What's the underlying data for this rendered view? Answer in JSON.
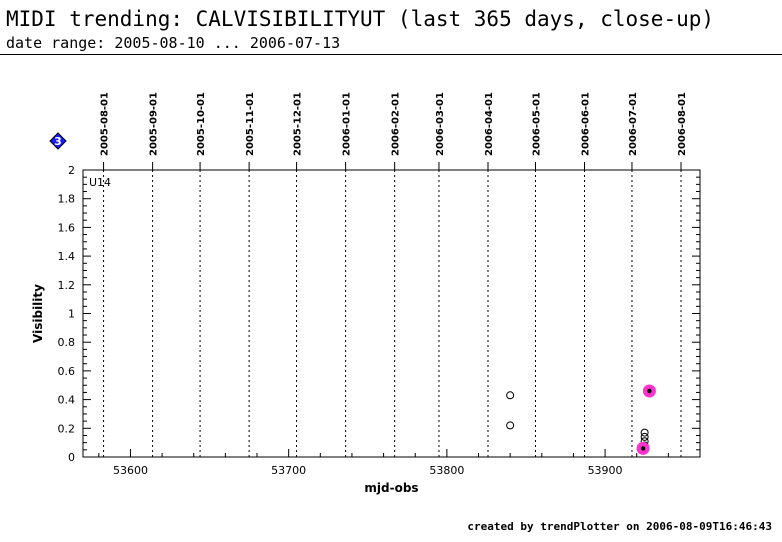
{
  "title": "MIDI trending: CALVISIBILITYUT (last 365 days, close-up)",
  "subtitle": "date range: 2005-08-10 ... 2006-07-13",
  "footer": "created by trendPlotter on 2006-08-09T16:46:43",
  "badge": {
    "label": "3",
    "color": "#1a1aff",
    "icon": "diamond-icon"
  },
  "chart_data": {
    "type": "scatter",
    "panel_label": "U14",
    "xlabel": "mjd-obs",
    "ylabel": "Visibility",
    "xlim": [
      53570,
      53960
    ],
    "ylim": [
      0,
      2
    ],
    "x_ticks": [
      53600,
      53700,
      53800,
      53900
    ],
    "y_ticks": [
      0,
      0.2,
      0.4,
      0.6,
      0.8,
      1,
      1.2,
      1.4,
      1.6,
      1.8,
      2
    ],
    "y_tick_labels": [
      "0",
      "0.2",
      "0.4",
      "0.6",
      "0.8",
      "1",
      "1.2",
      "1.4",
      "1.6",
      "1.8",
      "2"
    ],
    "date_markers": [
      {
        "label": "2005-08-01",
        "mjd": 53583
      },
      {
        "label": "2005-09-01",
        "mjd": 53614
      },
      {
        "label": "2005-10-01",
        "mjd": 53644
      },
      {
        "label": "2005-11-01",
        "mjd": 53675
      },
      {
        "label": "2005-12-01",
        "mjd": 53705
      },
      {
        "label": "2006-01-01",
        "mjd": 53736
      },
      {
        "label": "2006-02-01",
        "mjd": 53767
      },
      {
        "label": "2006-03-01",
        "mjd": 53795
      },
      {
        "label": "2006-04-01",
        "mjd": 53826
      },
      {
        "label": "2006-05-01",
        "mjd": 53856
      },
      {
        "label": "2006-06-01",
        "mjd": 53887
      },
      {
        "label": "2006-07-01",
        "mjd": 53917
      },
      {
        "label": "2006-08-01",
        "mjd": 53948
      }
    ],
    "grid": "vertical dotted lines at month starts",
    "highlight_color": "#ff33cc",
    "series": [
      {
        "marker": "open-circle",
        "points": [
          {
            "x": 53840,
            "y": 0.43
          },
          {
            "x": 53840,
            "y": 0.22
          },
          {
            "x": 53925,
            "y": 0.17
          },
          {
            "x": 53925,
            "y": 0.14
          },
          {
            "x": 53925,
            "y": 0.11
          },
          {
            "x": 53925,
            "y": 0.08
          }
        ]
      },
      {
        "marker": "highlighted-dot",
        "points": [
          {
            "x": 53924,
            "y": 0.06
          },
          {
            "x": 53928,
            "y": 0.46
          }
        ]
      }
    ]
  }
}
